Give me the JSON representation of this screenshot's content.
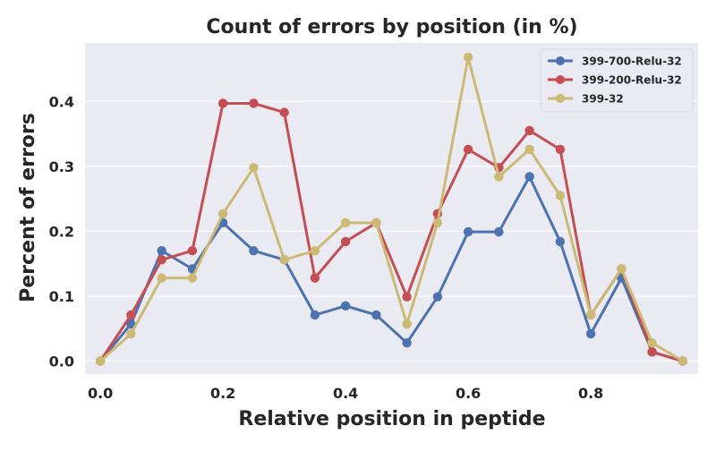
{
  "chart_data": {
    "type": "line",
    "title": "Count of errors by position (in %)",
    "xlabel": "Relative position in peptide",
    "ylabel": "Percent of errors",
    "xlim": [
      -0.025,
      0.975
    ],
    "ylim": [
      -0.02,
      0.49
    ],
    "xticks": [
      "0.0",
      "0.2",
      "0.4",
      "0.6",
      "0.8"
    ],
    "xtick_values": [
      0.0,
      0.2,
      0.4,
      0.6,
      0.8
    ],
    "yticks": [
      "0.0",
      "0.1",
      "0.2",
      "0.3",
      "0.4"
    ],
    "ytick_values": [
      0.0,
      0.1,
      0.2,
      0.3,
      0.4
    ],
    "grid": true,
    "legend_position": "top-right",
    "x": [
      0.0,
      0.05,
      0.1,
      0.15,
      0.2,
      0.25,
      0.3,
      0.35,
      0.4,
      0.45,
      0.5,
      0.55,
      0.6,
      0.65,
      0.7,
      0.75,
      0.8,
      0.85,
      0.9,
      0.95
    ],
    "series": [
      {
        "name": "399-700-Relu-32",
        "color": "#4c72b0",
        "values": [
          0.0,
          0.057,
          0.17,
          0.142,
          0.213,
          0.17,
          0.156,
          0.071,
          0.085,
          0.071,
          0.028,
          0.099,
          0.199,
          0.199,
          0.284,
          0.184,
          0.042,
          0.128,
          0.014,
          0.0
        ]
      },
      {
        "name": "399-200-Relu-32",
        "color": "#c44e52",
        "values": [
          0.0,
          0.071,
          0.156,
          0.17,
          0.397,
          0.397,
          0.383,
          0.128,
          0.184,
          0.213,
          0.099,
          0.227,
          0.326,
          0.298,
          0.355,
          0.326,
          0.071,
          0.142,
          0.014,
          0.0
        ]
      },
      {
        "name": "399-32",
        "color": "#ccb974",
        "values": [
          0.0,
          0.042,
          0.128,
          0.128,
          0.227,
          0.298,
          0.156,
          0.17,
          0.213,
          0.213,
          0.057,
          0.213,
          0.468,
          0.284,
          0.326,
          0.255,
          0.071,
          0.142,
          0.028,
          0.0
        ]
      }
    ]
  },
  "style": {
    "plot_background": "#eaeaf2",
    "grid_color": "#ffffff",
    "text_color": "#262626"
  }
}
